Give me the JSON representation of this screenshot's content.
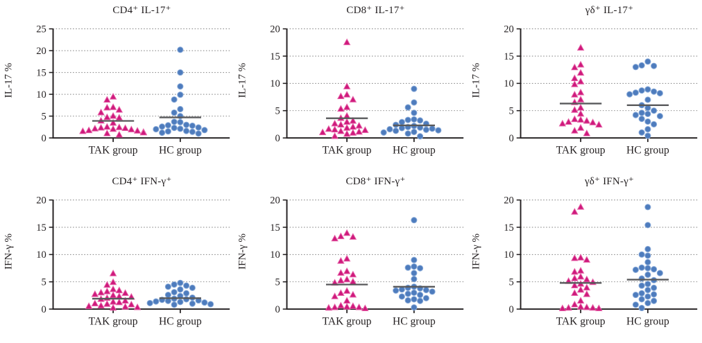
{
  "figure_name": "TAK vs HC cytokine-positive cell percentages",
  "groups": [
    "TAK group",
    "HC group"
  ],
  "colors": {
    "tak_fill": "#ce1a7c",
    "tak_edge": "#e662a8",
    "hc_fill": "#4e7cbd",
    "hc_edge": "#8aabd9",
    "axis": "#231f20",
    "grid": "#7f7f7f",
    "mean_line": "#58595b",
    "background": "#ffffff"
  },
  "chart_data": [
    {
      "type": "scatter",
      "title": "CD4⁺ IL-17⁺",
      "ylabel": "IL-17 %",
      "ylim": [
        0,
        25
      ],
      "yticks": [
        0,
        5,
        10,
        15,
        20,
        25
      ],
      "grid": "dotted horizontal",
      "categories": [
        "TAK group",
        "HC group"
      ],
      "series": [
        {
          "name": "TAK group",
          "marker": "triangle",
          "values": [
            9.4,
            8.7,
            7.0,
            6.9,
            6.4,
            5.8,
            5.0,
            4.7,
            4.6,
            3.9,
            3.4,
            2.5,
            2.4,
            2.3,
            2.2,
            2.1,
            2.0,
            1.9,
            1.7,
            1.6,
            1.5,
            1.3,
            1.2,
            1.0,
            0.7
          ],
          "mean": 3.9
        },
        {
          "name": "HC group",
          "marker": "circle",
          "values": [
            20.2,
            15.0,
            11.8,
            9.9,
            8.8,
            6.6,
            5.8,
            5.0,
            3.7,
            3.6,
            3.0,
            2.9,
            2.8,
            2.6,
            2.4,
            2.3,
            2.1,
            2.0,
            1.8,
            1.6,
            1.5,
            1.4,
            1.2,
            1.0
          ],
          "mean": 4.7
        }
      ]
    },
    {
      "type": "scatter",
      "title": "CD8⁺ IL-17⁺",
      "ylabel": "IL-17 %",
      "ylim": [
        0,
        20
      ],
      "yticks": [
        0,
        5,
        10,
        15,
        20
      ],
      "grid": "dotted horizontal",
      "categories": [
        "TAK group",
        "HC group"
      ],
      "series": [
        {
          "name": "TAK group",
          "marker": "triangle",
          "values": [
            17.5,
            9.4,
            7.9,
            7.6,
            7.0,
            5.6,
            5.3,
            4.0,
            3.6,
            3.1,
            2.9,
            2.6,
            2.4,
            2.2,
            2.0,
            1.8,
            1.6,
            1.5,
            1.4,
            1.2,
            1.1,
            1.0,
            0.9,
            0.7,
            0.3
          ],
          "mean": 3.6
        },
        {
          "name": "HC group",
          "marker": "circle",
          "values": [
            9.0,
            6.5,
            5.6,
            4.6,
            3.4,
            3.3,
            3.2,
            2.9,
            2.6,
            2.4,
            2.2,
            2.0,
            1.9,
            1.8,
            1.7,
            1.6,
            1.5,
            1.4,
            1.3,
            1.1,
            1.0,
            0.8,
            0.3
          ],
          "mean": 2.3
        }
      ]
    },
    {
      "type": "scatter",
      "title": "γδ⁺ IL-17⁺",
      "ylabel": "IL-17 %",
      "ylim": [
        0,
        20
      ],
      "yticks": [
        0,
        5,
        10,
        15,
        20
      ],
      "grid": "dotted horizontal",
      "categories": [
        "TAK group",
        "HC group"
      ],
      "series": [
        {
          "name": "TAK group",
          "marker": "triangle",
          "values": [
            16.5,
            13.4,
            12.9,
            11.9,
            10.9,
            10.3,
            9.8,
            8.3,
            7.9,
            7.0,
            6.5,
            5.5,
            5.1,
            4.4,
            3.4,
            3.3,
            3.1,
            2.9,
            2.8,
            2.6,
            2.4,
            1.8,
            1.3,
            0.8
          ],
          "mean": 6.3
        },
        {
          "name": "HC group",
          "marker": "circle",
          "values": [
            14.0,
            13.3,
            13.2,
            13.0,
            8.9,
            8.7,
            8.5,
            8.3,
            8.2,
            8.0,
            7.0,
            6.0,
            5.5,
            5.0,
            4.6,
            4.4,
            4.2,
            4.0,
            3.5,
            3.0,
            2.5,
            1.6,
            1.0,
            0.4
          ],
          "mean": 6.0
        }
      ]
    },
    {
      "type": "scatter",
      "title": "CD4⁺ IFN-γ⁺",
      "ylabel": "IFN-γ %",
      "ylim": [
        0,
        20
      ],
      "yticks": [
        0,
        5,
        10,
        15,
        20
      ],
      "grid": "dotted horizontal",
      "categories": [
        "TAK group",
        "HC group"
      ],
      "series": [
        {
          "name": "TAK group",
          "marker": "triangle",
          "values": [
            6.5,
            4.9,
            4.4,
            3.6,
            3.4,
            3.2,
            3.0,
            2.9,
            2.7,
            2.5,
            2.3,
            2.2,
            2.0,
            1.8,
            1.5,
            1.3,
            1.2,
            1.0,
            0.9,
            0.8,
            0.6,
            0.5,
            0.4,
            0.3,
            0.2
          ],
          "mean": 1.9
        },
        {
          "name": "HC group",
          "marker": "circle",
          "values": [
            4.8,
            4.5,
            4.3,
            4.1,
            3.9,
            3.6,
            3.1,
            2.9,
            2.6,
            2.4,
            2.1,
            1.9,
            1.8,
            1.7,
            1.6,
            1.5,
            1.4,
            1.3,
            1.2,
            1.1,
            1.0,
            0.9,
            0.8
          ],
          "mean": 2.0
        }
      ]
    },
    {
      "type": "scatter",
      "title": "CD8⁺ IFN-γ⁺",
      "ylabel": "IFN-γ %",
      "ylim": [
        0,
        20
      ],
      "yticks": [
        0,
        5,
        10,
        15,
        20
      ],
      "grid": "dotted horizontal",
      "categories": [
        "TAK group",
        "HC group"
      ],
      "series": [
        {
          "name": "TAK group",
          "marker": "triangle",
          "values": [
            13.9,
            13.3,
            13.2,
            12.9,
            9.2,
            8.8,
            6.9,
            6.6,
            6.3,
            5.4,
            5.2,
            5.0,
            4.8,
            3.3,
            2.9,
            2.6,
            2.3,
            1.5,
            0.6,
            0.5,
            0.4,
            0.3,
            0.3,
            0.2,
            0.1
          ],
          "mean": 4.5
        },
        {
          "name": "HC group",
          "marker": "circle",
          "values": [
            16.3,
            9.0,
            7.8,
            7.6,
            7.5,
            6.6,
            5.5,
            4.1,
            3.9,
            3.8,
            3.6,
            3.5,
            3.4,
            3.2,
            3.0,
            2.8,
            2.6,
            2.3,
            2.0,
            1.8,
            1.6,
            1.5,
            0.3
          ],
          "mean": 4.1
        }
      ]
    },
    {
      "type": "scatter",
      "title": "γδ⁺ IFN-γ⁺",
      "ylabel": "IFN-γ %",
      "ylim": [
        0,
        20
      ],
      "yticks": [
        0,
        5,
        10,
        15,
        20
      ],
      "grid": "dotted horizontal",
      "categories": [
        "TAK group",
        "HC group"
      ],
      "series": [
        {
          "name": "TAK group",
          "marker": "triangle",
          "values": [
            18.7,
            17.8,
            9.4,
            9.3,
            9.0,
            7.0,
            6.8,
            5.9,
            5.6,
            5.4,
            5.1,
            4.9,
            4.6,
            4.3,
            3.9,
            3.5,
            2.9,
            2.7,
            1.5,
            0.8,
            0.4,
            0.3,
            0.2,
            0.2,
            0.1,
            0.1
          ],
          "mean": 4.8
        },
        {
          "name": "HC group",
          "marker": "circle",
          "values": [
            18.7,
            15.4,
            11.0,
            10.0,
            9.8,
            8.6,
            7.6,
            7.5,
            7.3,
            7.2,
            6.6,
            6.3,
            5.6,
            5.3,
            4.6,
            4.3,
            3.9,
            3.5,
            2.9,
            2.7,
            2.6,
            2.3,
            1.8,
            1.5,
            1.1,
            0.8,
            0.2
          ],
          "mean": 5.4
        }
      ]
    }
  ]
}
